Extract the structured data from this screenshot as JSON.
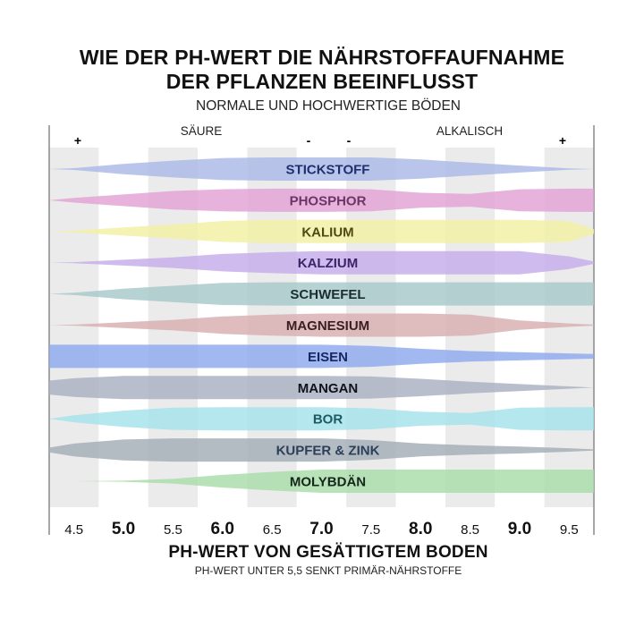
{
  "title_line1": "WIE DER PH-WERT DIE NÄHRSTOFFAUFNAHME",
  "title_line2": "DER PFLANZEN BEEINFLUSST",
  "subtitle": "NORMALE UND HOCHWERTIGE BÖDEN",
  "top_labels": {
    "acid": "SÄURE",
    "alkaline": "ALKALISCH",
    "plus_left": "+",
    "minus1": "-",
    "minus2": "-",
    "plus_right": "+"
  },
  "footer": {
    "xlabel": "PH-WERT VON GESÄTTIGTEM BODEN",
    "note": "PH-WERT UNTER 5,5 SENKT PRIMÄR-NÄHRSTOFFE"
  },
  "chart_data": {
    "type": "area",
    "x_ticks": [
      "4.5",
      "5.0",
      "5.5",
      "6.0",
      "6.5",
      "7.0",
      "7.5",
      "8.0",
      "8.5",
      "9.0",
      "9.5"
    ],
    "bold_ticks": [
      "5.0",
      "6.0",
      "7.0",
      "8.0",
      "9.0"
    ],
    "xlim": [
      4.25,
      9.75
    ],
    "grid": "alternating vertical bands",
    "series": [
      {
        "name": "STICKSTOFF",
        "color": "#aab8e6",
        "label_color": "#1f2f6e",
        "x": [
          4.25,
          4.5,
          5.0,
          5.5,
          6.0,
          6.5,
          7.0,
          7.5,
          8.0,
          8.5,
          9.0,
          9.5,
          9.75
        ],
        "width": [
          0.0,
          0.08,
          0.45,
          0.72,
          0.95,
          1.0,
          1.0,
          1.0,
          0.82,
          0.55,
          0.3,
          0.05,
          0.0
        ]
      },
      {
        "name": "PHOSPHOR",
        "color": "#e2a2d6",
        "label_color": "#6b3565",
        "x": [
          4.25,
          4.5,
          5.0,
          5.5,
          6.0,
          6.5,
          7.0,
          7.5,
          8.0,
          8.5,
          9.0,
          9.5,
          9.75
        ],
        "width": [
          0.0,
          0.2,
          0.5,
          0.8,
          0.95,
          1.0,
          1.0,
          0.95,
          0.65,
          0.55,
          0.95,
          1.0,
          1.0
        ]
      },
      {
        "name": "KALIUM",
        "color": "#f2f0a4",
        "label_color": "#4f4a12",
        "x": [
          4.25,
          4.5,
          5.0,
          5.5,
          6.0,
          6.5,
          7.0,
          7.5,
          8.0,
          8.5,
          9.0,
          9.5,
          9.75
        ],
        "width": [
          0.0,
          0.08,
          0.35,
          0.6,
          0.9,
          1.0,
          1.0,
          1.0,
          1.0,
          1.0,
          1.0,
          0.9,
          0.2
        ]
      },
      {
        "name": "KALZIUM",
        "color": "#c6acea",
        "label_color": "#3d2368",
        "x": [
          4.25,
          4.5,
          5.0,
          5.5,
          6.0,
          6.5,
          7.0,
          7.5,
          8.0,
          8.5,
          9.0,
          9.5,
          9.75
        ],
        "width": [
          0.0,
          0.05,
          0.25,
          0.45,
          0.75,
          0.9,
          1.0,
          1.0,
          1.0,
          1.0,
          1.0,
          0.55,
          0.1
        ]
      },
      {
        "name": "SCHWEFEL",
        "color": "#a6c8c8",
        "label_color": "#1b2e2e",
        "x": [
          4.25,
          4.5,
          5.0,
          5.5,
          6.0,
          6.5,
          7.0,
          7.5,
          8.0,
          8.5,
          9.0,
          9.5,
          9.75
        ],
        "width": [
          0.0,
          0.1,
          0.45,
          0.7,
          0.95,
          1.0,
          1.0,
          1.0,
          1.0,
          1.0,
          1.0,
          1.0,
          1.0
        ]
      },
      {
        "name": "MAGNESIUM",
        "color": "#d8aeb0",
        "label_color": "#3b1e20",
        "x": [
          4.25,
          4.5,
          5.0,
          5.5,
          6.0,
          6.5,
          7.0,
          7.5,
          8.0,
          8.5,
          9.0,
          9.5,
          9.75
        ],
        "width": [
          0.0,
          0.05,
          0.25,
          0.45,
          0.75,
          0.9,
          1.0,
          1.0,
          1.0,
          0.9,
          0.4,
          0.15,
          0.05
        ]
      },
      {
        "name": "EISEN",
        "color": "#8ea8ee",
        "label_color": "#16285e",
        "x": [
          4.25,
          4.5,
          5.0,
          5.5,
          6.0,
          6.5,
          7.0,
          7.5,
          8.0,
          8.5,
          9.0,
          9.5,
          9.75
        ],
        "width": [
          1.0,
          1.0,
          1.0,
          1.0,
          1.0,
          1.0,
          1.0,
          0.9,
          0.65,
          0.45,
          0.35,
          0.25,
          0.2
        ]
      },
      {
        "name": "MANGAN",
        "color": "#a8b0c0",
        "label_color": "#10131c",
        "x": [
          4.25,
          4.5,
          5.0,
          5.5,
          6.0,
          6.5,
          7.0,
          7.5,
          8.0,
          8.5,
          9.0,
          9.5,
          9.75
        ],
        "width": [
          0.6,
          0.8,
          1.0,
          1.0,
          1.0,
          1.0,
          1.0,
          0.95,
          0.75,
          0.5,
          0.3,
          0.1,
          0.0
        ]
      },
      {
        "name": "BOR",
        "color": "#a4e2ea",
        "label_color": "#1d5a64",
        "x": [
          4.25,
          4.5,
          5.0,
          5.5,
          6.0,
          6.5,
          7.0,
          7.5,
          8.0,
          8.5,
          9.0,
          9.5,
          9.75
        ],
        "width": [
          0.0,
          0.3,
          0.7,
          0.95,
          1.0,
          1.0,
          1.0,
          0.9,
          0.6,
          0.5,
          0.95,
          1.0,
          1.0
        ]
      },
      {
        "name": "KUPFER & ZINK",
        "color": "#a2acb6",
        "label_color": "#2c3f58",
        "x": [
          4.25,
          4.5,
          5.0,
          5.5,
          6.0,
          6.5,
          7.0,
          7.5,
          8.0,
          8.5,
          9.0,
          9.5,
          9.75
        ],
        "width": [
          0.2,
          0.55,
          0.9,
          1.0,
          1.0,
          1.0,
          1.0,
          0.85,
          0.55,
          0.4,
          0.3,
          0.15,
          0.05
        ]
      },
      {
        "name": "MOLYBDÄN",
        "color": "#a8dca8",
        "label_color": "#14281a",
        "x": [
          4.25,
          4.5,
          5.0,
          5.5,
          6.0,
          6.5,
          7.0,
          7.5,
          8.0,
          8.5,
          9.0,
          9.5,
          9.75
        ],
        "width": [
          0.0,
          0.0,
          0.05,
          0.2,
          0.55,
          0.8,
          1.0,
          1.0,
          1.0,
          1.0,
          1.0,
          1.0,
          1.0
        ]
      }
    ]
  }
}
